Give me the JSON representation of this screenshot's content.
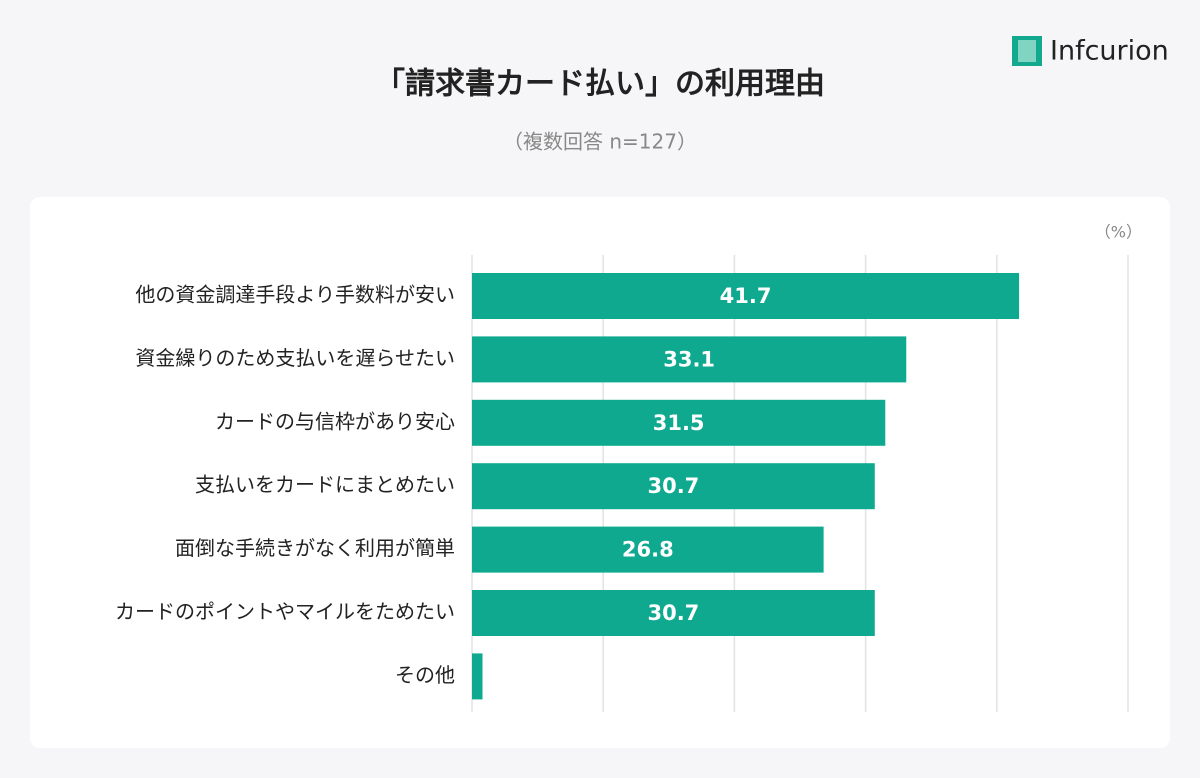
{
  "logo": "Infcurion",
  "chart_data": {
    "type": "hbar",
    "title": "「請求書カード払い」の利用理由",
    "subtitle": "（複数回答 n=127）",
    "unit_label": "（%）",
    "categories": [
      "他の資金調達手段より手数料が安い",
      "資金繰りのため支払いを遅らせたい",
      "カードの与信枠があり安心",
      "支払いをカードにまとめたい",
      "面倒な手続きがなく利用が簡単",
      "カードのポイントやマイルをためたい",
      "その他"
    ],
    "values": [
      41.7,
      33.1,
      31.5,
      30.7,
      26.8,
      30.7,
      0.8
    ],
    "color": "#0fa98f",
    "xlim": [
      0,
      50
    ],
    "xticks": [
      0,
      10,
      20,
      30,
      40,
      50
    ],
    "grid": true
  }
}
